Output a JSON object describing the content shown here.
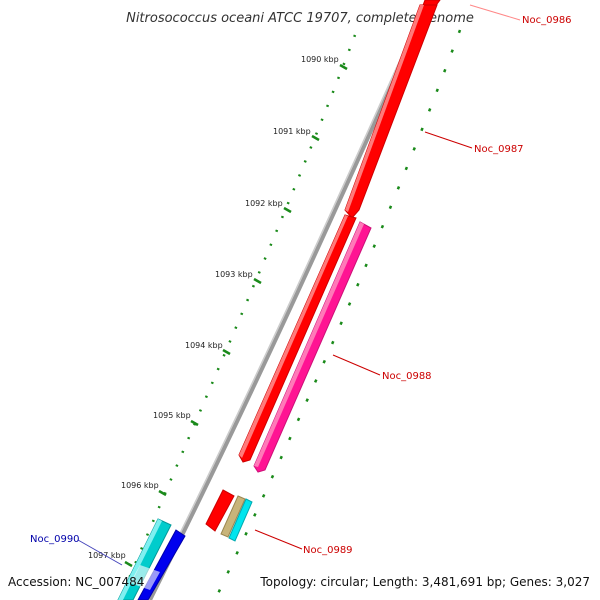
{
  "map": {
    "title": "Nitrosococcus oceani ATCC 19707, complete genome",
    "accession": "Accession: NC_007484",
    "summary": "Topology: circular; Length: 3,481,691 bp; Genes: 3,027",
    "ticks": [
      "1090 kbp",
      "1091 kbp",
      "1092 kbp",
      "1093 kbp",
      "1094 kbp",
      "1095 kbp",
      "1096 kbp",
      "1097 kbp"
    ],
    "genes": [
      {
        "label": "Noc_0986",
        "color": "#ff0000",
        "strand": "+"
      },
      {
        "label": "Noc_0987",
        "color": "#ff0000",
        "strand": "+"
      },
      {
        "label": "Noc_0988",
        "color": "#ff1493",
        "strand": "-"
      },
      {
        "label": "Noc_0989",
        "color": "#ff0000",
        "strand": "+"
      },
      {
        "label": "Noc_0990",
        "color": "#00cccc",
        "strand": "-"
      }
    ],
    "colors": {
      "backbone": "#888888",
      "tick_marks": "#1a8a1a",
      "label_red": "#cc0000",
      "label_blue": "#0000aa",
      "tan_feature": "#c8b47a",
      "cyan_feature": "#00e5ee",
      "blue_feature": "#0000ee"
    }
  }
}
